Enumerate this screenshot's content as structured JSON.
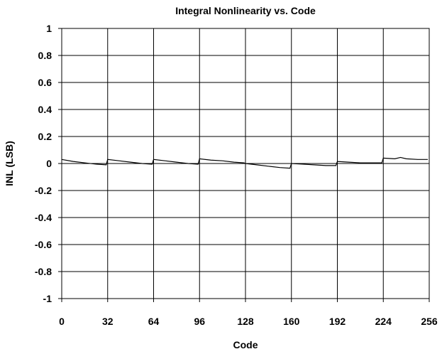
{
  "chart_data": {
    "type": "line",
    "title": "Integral Nonlinearity vs. Code",
    "xlabel": "Code",
    "ylabel": "INL (LSB)",
    "xlim": [
      0,
      256
    ],
    "ylim": [
      -1,
      1
    ],
    "xticks": [
      0,
      32,
      64,
      96,
      128,
      160,
      192,
      224,
      256
    ],
    "yticks": [
      1,
      0.8,
      0.6,
      0.4,
      0.2,
      0,
      -0.2,
      -0.4,
      -0.6,
      -0.8,
      -1
    ],
    "ytick_labels": [
      "1",
      "0.8",
      "0.6",
      "0.4",
      "0.2",
      "0",
      "-0.2",
      "-0.4",
      "-0.6",
      "-0.8",
      "-1"
    ],
    "grid": true,
    "series": [
      {
        "color": "#000000",
        "x": [
          0,
          8,
          16,
          24,
          31,
          32,
          40,
          48,
          56,
          63,
          64,
          72,
          80,
          88,
          95,
          96,
          104,
          112,
          120,
          127,
          128,
          136,
          144,
          152,
          159,
          160,
          168,
          176,
          184,
          191,
          192,
          200,
          208,
          216,
          223,
          224,
          232,
          236,
          240,
          248,
          255
        ],
        "y": [
          0.03,
          0.015,
          0.005,
          -0.005,
          -0.01,
          0.03,
          0.02,
          0.01,
          0.0,
          -0.005,
          0.03,
          0.02,
          0.01,
          0.0,
          -0.005,
          0.035,
          0.025,
          0.02,
          0.01,
          0.005,
          0.0,
          -0.01,
          -0.02,
          -0.03,
          -0.035,
          0.0,
          -0.005,
          -0.01,
          -0.015,
          -0.015,
          0.015,
          0.01,
          0.005,
          0.005,
          0.005,
          0.04,
          0.035,
          0.045,
          0.035,
          0.03,
          0.03
        ]
      }
    ]
  }
}
